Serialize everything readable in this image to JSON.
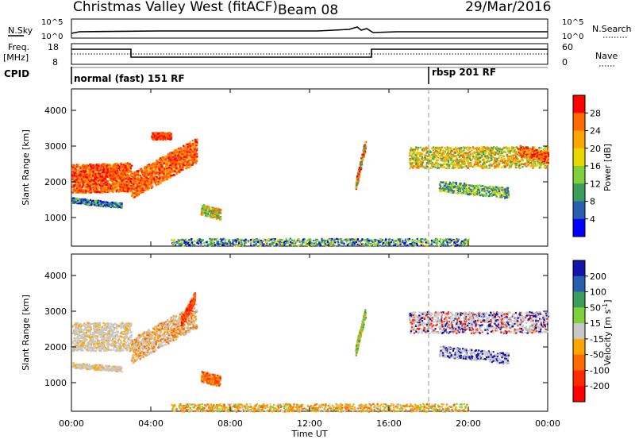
{
  "header": {
    "station": "Christmas Valley West (fitACF)",
    "beam": "Beam 08",
    "date": "29/Mar/2016"
  },
  "strip_panels": {
    "nsky_label": "N.Sky",
    "nsky_ticks": [
      "10^5",
      "10^0"
    ],
    "nsearch_label": "N.Search",
    "nsearch_ticks": [
      "10^5",
      "10^0"
    ],
    "freq_label": "Freq.",
    "freq_unit": "[MHz]",
    "freq_ticks": [
      "18",
      "8"
    ],
    "nave_label": "Nave",
    "nave_ticks": [
      "60",
      "0"
    ],
    "cpid_label": "CPID",
    "modes": [
      {
        "name": "normal (fast) 151 RF",
        "start_hour": 0
      },
      {
        "name": "rbsp 201 RF",
        "start_hour": 18
      }
    ]
  },
  "chart_data": [
    {
      "type": "heatmap",
      "name": "power",
      "ylabel": "Slant Range [km]",
      "xlabel": "Time UT",
      "xlim": [
        0,
        24
      ],
      "ylim": [
        200,
        4600
      ],
      "x_ticks": [
        "00:00",
        "04:00",
        "08:00",
        "12:00",
        "16:00",
        "20:00",
        "00:00"
      ],
      "y_ticks": [
        1000,
        2000,
        3000,
        4000
      ],
      "colorbar": {
        "label": "Power [dB]",
        "ticks": [
          "28",
          "24",
          "20",
          "16",
          "12",
          "8",
          "4"
        ],
        "colors": [
          "#ff0000",
          "#ff6a00",
          "#ffa500",
          "#e8d800",
          "#7fd03a",
          "#3a9e5a",
          "#2a5fb0",
          "#0000ff"
        ]
      }
    },
    {
      "type": "heatmap",
      "name": "velocity",
      "ylabel": "Slant Range [km]",
      "xlabel": "Time UT",
      "xlim": [
        0,
        24
      ],
      "ylim": [
        200,
        4600
      ],
      "x_ticks": [
        "00:00",
        "04:00",
        "08:00",
        "12:00",
        "16:00",
        "20:00",
        "00:00"
      ],
      "y_ticks": [
        1000,
        2000,
        3000,
        4000
      ],
      "colorbar": {
        "label": "Velocity [m s^-1]",
        "ticks": [
          "200",
          "100",
          "50",
          "15",
          "-15",
          "-50",
          "-100",
          "-200"
        ],
        "colors": [
          "#1414aa",
          "#2a5fb0",
          "#3a9e5a",
          "#7fd03a",
          "#c8c8c8",
          "#ffa500",
          "#ff6a00",
          "#ff2a00",
          "#ff0000"
        ]
      }
    }
  ],
  "x_axis_title": "Time UT"
}
